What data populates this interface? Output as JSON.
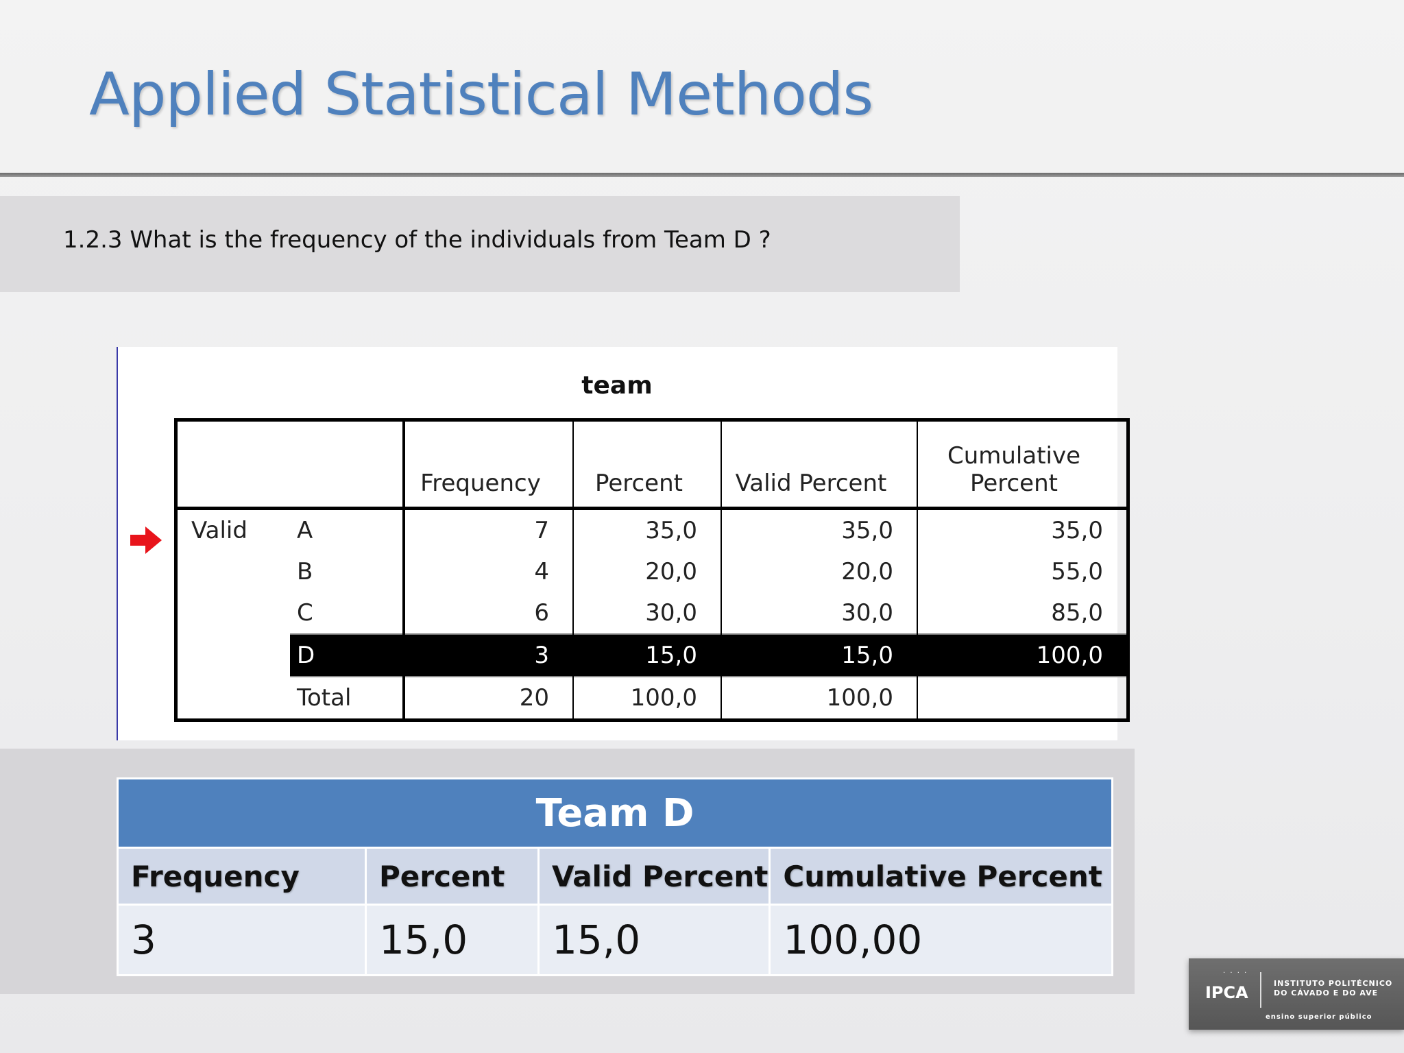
{
  "slide": {
    "title": "Applied Statistical Methods",
    "question": "1.2.3 What is the frequency of the individuals from Team D ?"
  },
  "spss_output": {
    "caption": "team",
    "headers": [
      "Frequency",
      "Percent",
      "Valid Percent",
      "Cumulative Percent"
    ],
    "group_label": "Valid",
    "rows": [
      {
        "category": "A",
        "frequency": "7",
        "percent": "35,0",
        "valid_percent": "35,0",
        "cumulative_percent": "35,0"
      },
      {
        "category": "B",
        "frequency": "4",
        "percent": "20,0",
        "valid_percent": "20,0",
        "cumulative_percent": "55,0"
      },
      {
        "category": "C",
        "frequency": "6",
        "percent": "30,0",
        "valid_percent": "30,0",
        "cumulative_percent": "85,0"
      },
      {
        "category": "D",
        "frequency": "3",
        "percent": "15,0",
        "valid_percent": "15,0",
        "cumulative_percent": "100,0"
      }
    ],
    "total": {
      "category": "Total",
      "frequency": "20",
      "percent": "100,0",
      "valid_percent": "100,0",
      "cumulative_percent": ""
    },
    "highlighted_category": "D"
  },
  "summary": {
    "caption": "Team D",
    "headers": [
      "Frequency",
      "Percent",
      "Valid Percent",
      "Cumulative Percent"
    ],
    "values": [
      "3",
      "15,0",
      "15,0",
      "100,00"
    ]
  },
  "logo": {
    "mark": "IPCA",
    "name_line1": "INSTITUTO POLITÉCNICO",
    "name_line2": "DO CÁVADO E DO AVE",
    "tagline": "ensino superior público"
  },
  "colors": {
    "title": "#4f81bd",
    "summary_header": "#4f81bd",
    "summary_col_header": "#d0d8e8",
    "summary_cell": "#e9edf4",
    "arrow": "#e8141b"
  }
}
